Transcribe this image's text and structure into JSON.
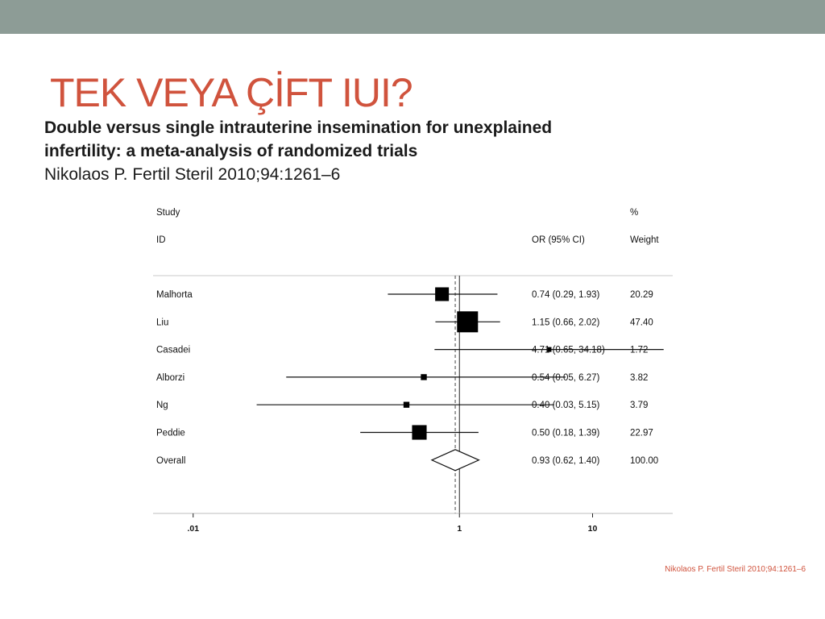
{
  "slide": {
    "title": "TEK VEYA ÇİFT IUI?",
    "subtitle_line1": "Double versus single intrauterine insemination for unexplained",
    "subtitle_line2": "infertility: a meta-analysis of randomized trials",
    "citation": "Nikolaos P. Fertil Steril 2010;94:1261–6",
    "footer": "Nikolaos P. Fertil Steril 2010;94:1261–6"
  },
  "colors": {
    "topbar": "#8d9c96",
    "title": "#d0533d",
    "marker": "#000000"
  },
  "chart_data": {
    "type": "forest",
    "headers": {
      "study_line1": "Study",
      "study_line2": "ID",
      "or": "OR (95% CI)",
      "weight_line1": "%",
      "weight_line2": "Weight"
    },
    "x_scale": "log",
    "xlim": [
      0.005,
      40
    ],
    "xticks": [
      {
        "value": 0.01,
        "label": ".01"
      },
      {
        "value": 1,
        "label": "1"
      },
      {
        "value": 10,
        "label": "10"
      }
    ],
    "reference_line": 1,
    "studies": [
      {
        "id": "Malhorta",
        "or": 0.74,
        "lo": 0.29,
        "hi": 1.93,
        "or_text": "0.74 (0.29, 1.93)",
        "weight": 20.29,
        "weight_text": "20.29"
      },
      {
        "id": "Liu",
        "or": 1.15,
        "lo": 0.66,
        "hi": 2.02,
        "or_text": "1.15 (0.66, 2.02)",
        "weight": 47.4,
        "weight_text": "47.40"
      },
      {
        "id": "Casadei",
        "or": 4.71,
        "lo": 0.65,
        "hi": 34.18,
        "or_text": "4.71 (0.65, 34.18)",
        "weight": 1.72,
        "weight_text": "1.72"
      },
      {
        "id": "Alborzi",
        "or": 0.54,
        "lo": 0.05,
        "hi": 6.27,
        "or_text": "0.54 (0.05, 6.27)",
        "weight": 3.82,
        "weight_text": "3.82"
      },
      {
        "id": "Ng",
        "or": 0.4,
        "lo": 0.03,
        "hi": 5.15,
        "or_text": "0.40 (0.03, 5.15)",
        "weight": 3.79,
        "weight_text": "3.79"
      },
      {
        "id": "Peddie",
        "or": 0.5,
        "lo": 0.18,
        "hi": 1.39,
        "or_text": "0.50 (0.18, 1.39)",
        "weight": 22.97,
        "weight_text": "22.97"
      }
    ],
    "overall": {
      "id": "Overall",
      "or": 0.93,
      "lo": 0.62,
      "hi": 1.4,
      "or_text": "0.93 (0.62, 1.40)",
      "weight_text": "100.00"
    }
  }
}
